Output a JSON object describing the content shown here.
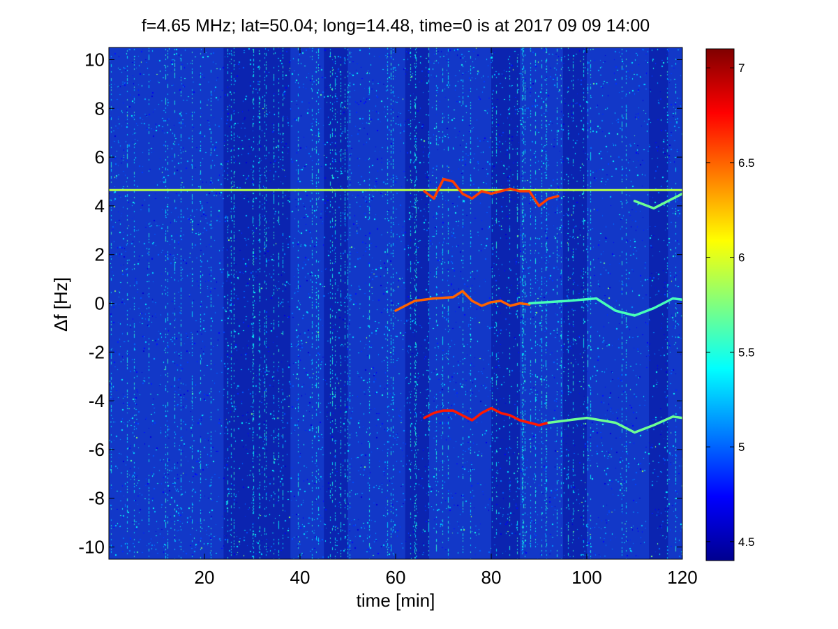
{
  "chart_data": {
    "type": "heatmap",
    "title": "f=4.65 MHz;  lat=50.04; long=14.48, time=0 is at 2017 09 09 14:00",
    "xlabel": "time [min]",
    "ylabel": "Δf [Hz]",
    "xlim": [
      0,
      120
    ],
    "ylim": [
      -10.5,
      10.5
    ],
    "xticks": [
      20,
      40,
      60,
      80,
      100,
      120
    ],
    "yticks": [
      -10,
      -8,
      -6,
      -4,
      -2,
      0,
      2,
      4,
      6,
      8,
      10
    ],
    "colorbar": {
      "colormap": "jet",
      "range": [
        4.4,
        7.1
      ],
      "ticks": [
        4.5,
        5,
        5.5,
        6,
        6.5,
        7
      ]
    },
    "background_level": 4.85,
    "dark_bands_min": [
      [
        24,
        38
      ],
      [
        45,
        50
      ],
      [
        62,
        67
      ],
      [
        80,
        86
      ],
      [
        95,
        100
      ],
      [
        113,
        117
      ]
    ],
    "traces": [
      {
        "label": "carrier",
        "level": 5.9,
        "points": [
          [
            0,
            4.65
          ],
          [
            120,
            4.65
          ]
        ]
      },
      {
        "label": "upper-sideband",
        "level": 6.6,
        "points": [
          [
            66,
            4.6
          ],
          [
            68,
            4.3
          ],
          [
            70,
            5.1
          ],
          [
            72,
            5.0
          ],
          [
            74,
            4.5
          ],
          [
            76,
            4.3
          ],
          [
            78,
            4.6
          ],
          [
            80,
            4.5
          ],
          [
            82,
            4.6
          ],
          [
            84,
            4.7
          ],
          [
            86,
            4.6
          ],
          [
            88,
            4.6
          ],
          [
            90,
            4.0
          ],
          [
            92,
            4.3
          ],
          [
            94,
            4.4
          ]
        ]
      },
      {
        "label": "upper-sideband-tail",
        "level": 5.7,
        "points": [
          [
            110,
            4.2
          ],
          [
            114,
            3.9
          ],
          [
            118,
            4.3
          ],
          [
            120,
            4.5
          ]
        ]
      },
      {
        "label": "zero-doppler",
        "level": 6.5,
        "points": [
          [
            60,
            -0.3
          ],
          [
            64,
            0.1
          ],
          [
            68,
            0.2
          ],
          [
            72,
            0.25
          ],
          [
            74,
            0.5
          ],
          [
            76,
            0.1
          ],
          [
            78,
            -0.1
          ],
          [
            80,
            0.05
          ],
          [
            82,
            0.1
          ],
          [
            84,
            -0.1
          ],
          [
            86,
            0.0
          ],
          [
            88,
            -0.05
          ]
        ]
      },
      {
        "label": "zero-doppler-tail",
        "level": 5.6,
        "points": [
          [
            88,
            0.0
          ],
          [
            96,
            0.1
          ],
          [
            102,
            0.2
          ],
          [
            106,
            -0.3
          ],
          [
            110,
            -0.5
          ],
          [
            114,
            -0.2
          ],
          [
            118,
            0.2
          ],
          [
            120,
            0.15
          ]
        ]
      },
      {
        "label": "lower-sideband",
        "level": 6.7,
        "points": [
          [
            66,
            -4.7
          ],
          [
            68,
            -4.5
          ],
          [
            70,
            -4.4
          ],
          [
            72,
            -4.4
          ],
          [
            74,
            -4.6
          ],
          [
            76,
            -4.8
          ],
          [
            78,
            -4.5
          ],
          [
            80,
            -4.3
          ],
          [
            82,
            -4.5
          ],
          [
            84,
            -4.6
          ],
          [
            86,
            -4.8
          ],
          [
            88,
            -4.9
          ],
          [
            90,
            -5.0
          ],
          [
            92,
            -4.9
          ]
        ]
      },
      {
        "label": "lower-sideband-tail",
        "level": 5.7,
        "points": [
          [
            92,
            -4.9
          ],
          [
            100,
            -4.7
          ],
          [
            106,
            -4.9
          ],
          [
            110,
            -5.3
          ],
          [
            114,
            -5.0
          ],
          [
            118,
            -4.65
          ],
          [
            120,
            -4.7
          ]
        ]
      }
    ]
  }
}
